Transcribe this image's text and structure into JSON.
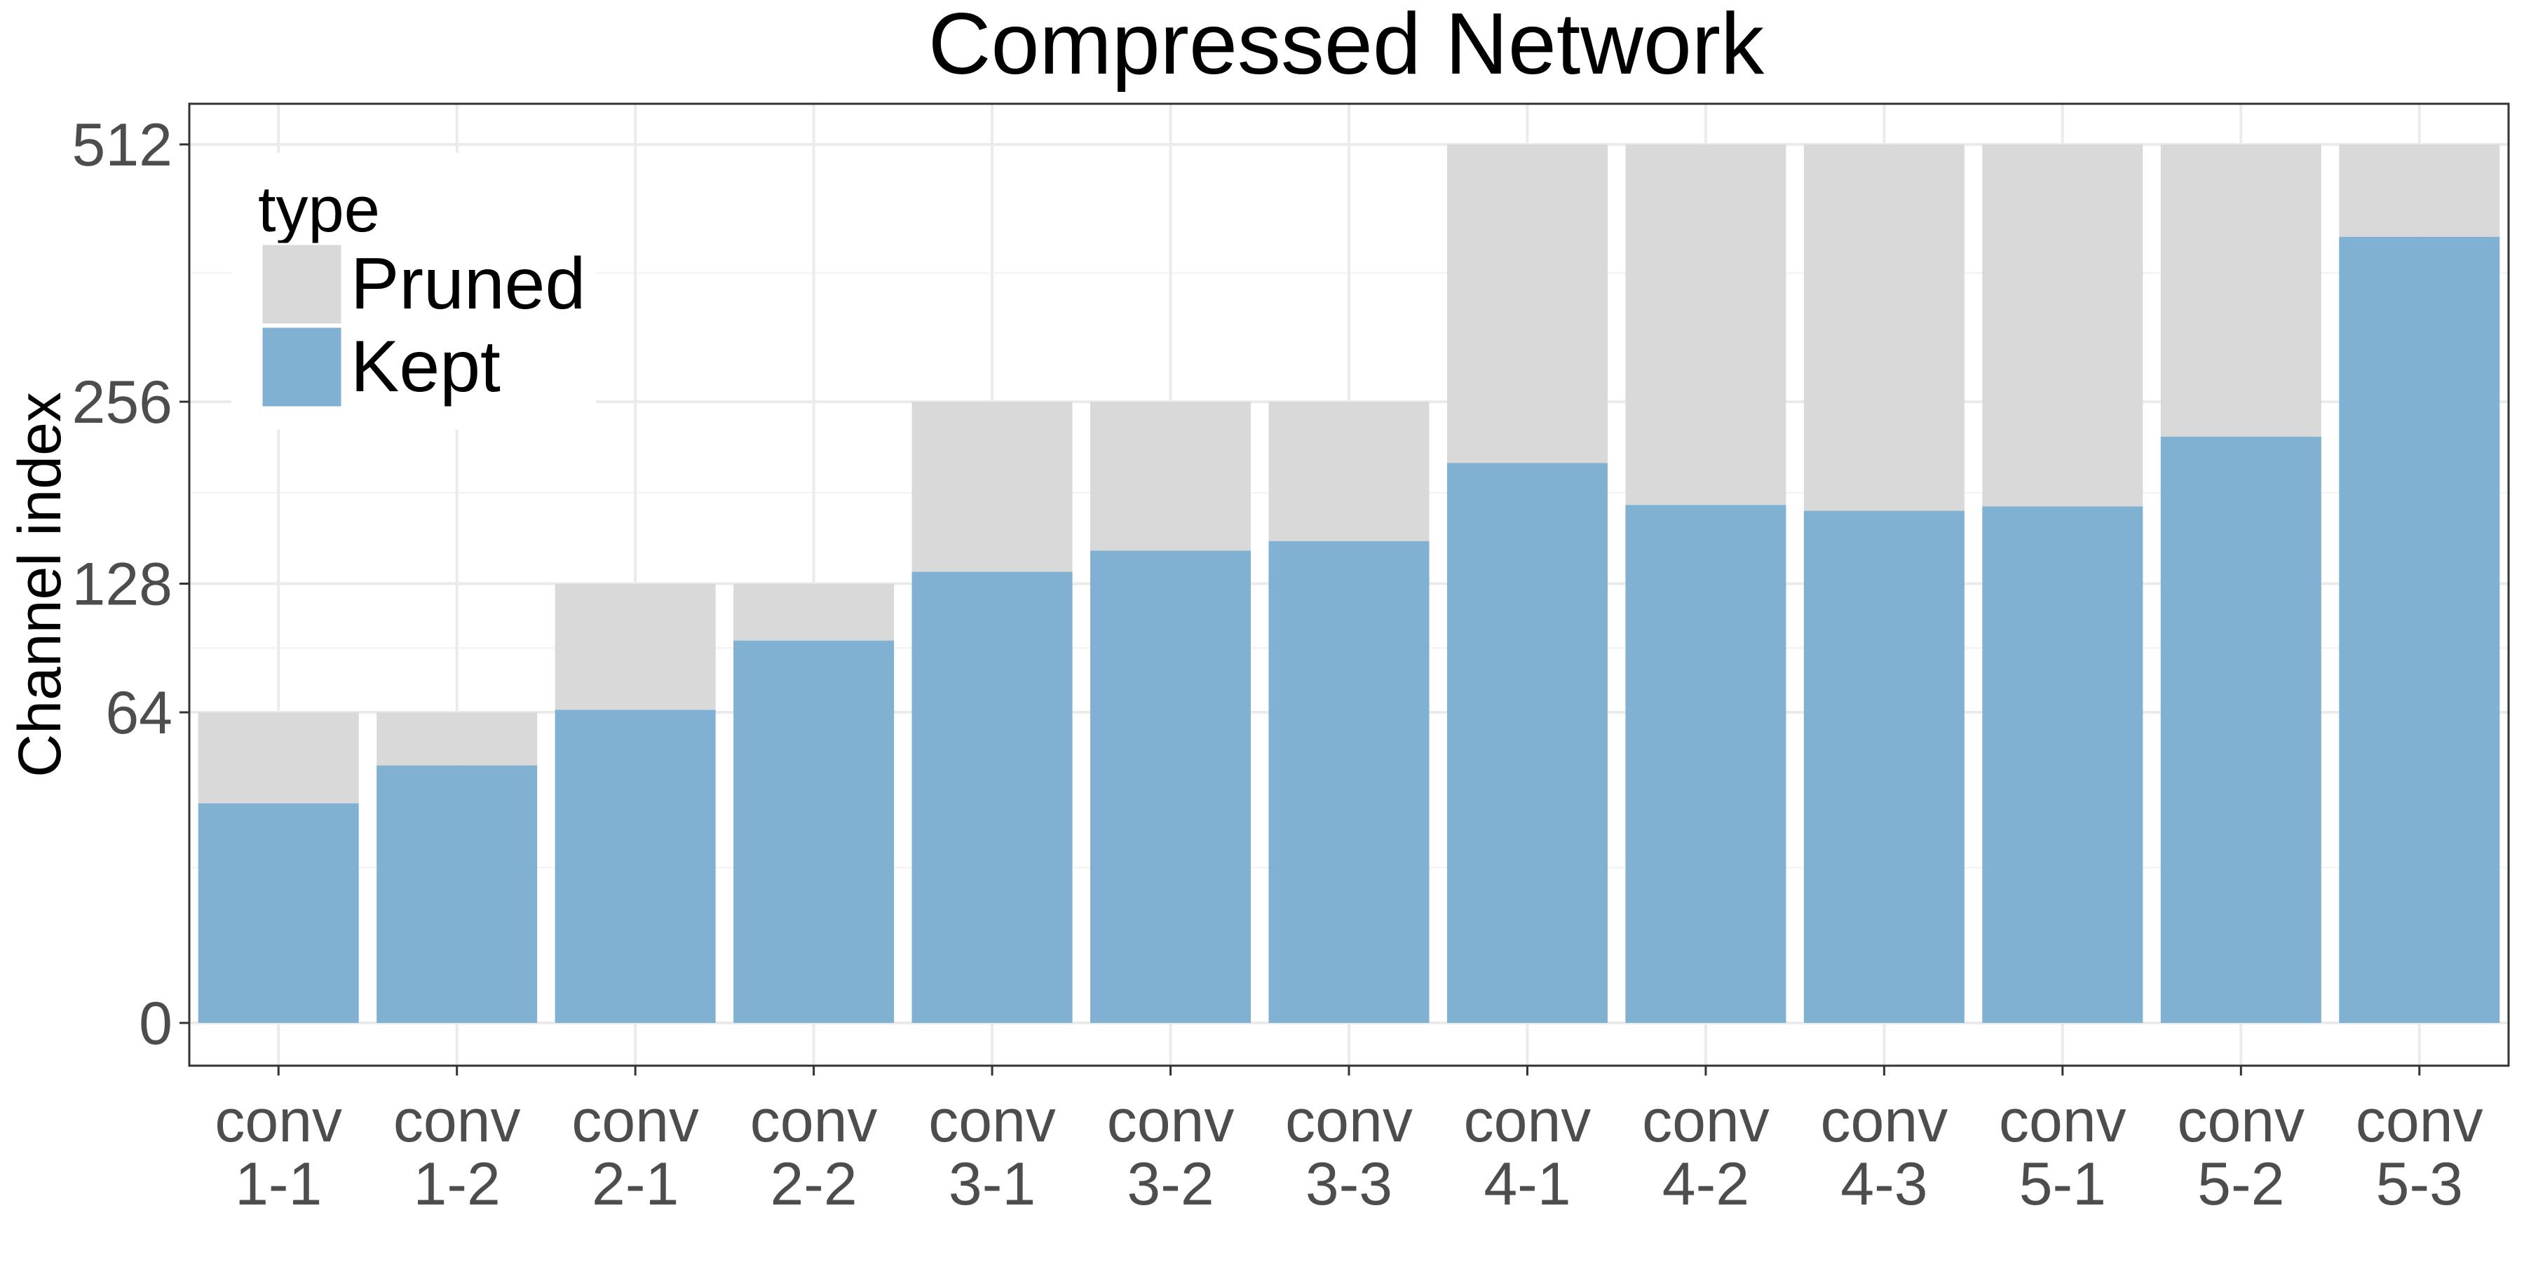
{
  "chart_data": {
    "type": "bar",
    "stacked": true,
    "title": "Compressed Network",
    "xlabel": "",
    "ylabel": "Channel index",
    "y_scale": "sqrt",
    "ylim": [
      0,
      580
    ],
    "yticks": [
      0,
      64,
      128,
      256,
      512
    ],
    "grid": true,
    "legend": {
      "title": "type",
      "position": "top-left"
    },
    "categories": [
      [
        "conv",
        "1-1"
      ],
      [
        "conv",
        "1-2"
      ],
      [
        "conv",
        "2-1"
      ],
      [
        "conv",
        "2-2"
      ],
      [
        "conv",
        "3-1"
      ],
      [
        "conv",
        "3-2"
      ],
      [
        "conv",
        "3-3"
      ],
      [
        "conv",
        "4-1"
      ],
      [
        "conv",
        "4-2"
      ],
      [
        "conv",
        "4-3"
      ],
      [
        "conv",
        "5-1"
      ],
      [
        "conv",
        "5-2"
      ],
      [
        "conv",
        "5-3"
      ]
    ],
    "totals": [
      64,
      64,
      128,
      128,
      256,
      256,
      256,
      512,
      512,
      512,
      512,
      512,
      512
    ],
    "series": [
      {
        "name": "Pruned",
        "color": "#d9d9d9",
        "values": [
          32,
          20,
          63,
          31,
          121,
          108,
          102,
          304,
          334,
          338,
          335,
          284,
          102
        ]
      },
      {
        "name": "Kept",
        "color": "#80b1d3",
        "values": [
          32,
          44,
          65,
          97,
          135,
          148,
          154,
          208,
          178,
          174,
          177,
          228,
          410
        ]
      }
    ]
  }
}
